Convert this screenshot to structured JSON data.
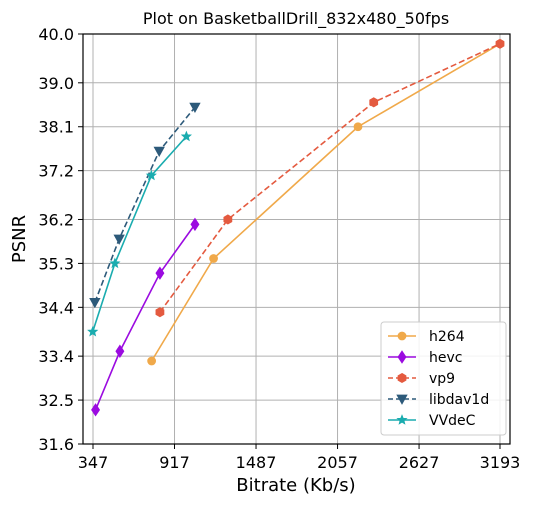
{
  "chart_data": {
    "type": "line",
    "title": "Plot on BasketballDrill_832x480_50fps",
    "xlabel": "Bitrate (Kb/s)",
    "ylabel": "PSNR",
    "xlim": [
      347,
      3193
    ],
    "ylim": [
      31.6,
      40.0
    ],
    "xticks": [
      347,
      917,
      1487,
      2057,
      2627,
      3193
    ],
    "xtick_labels": [
      "347",
      "917",
      "1487",
      "2057",
      "2627",
      "3193"
    ],
    "yticks": [
      31.6,
      32.5,
      33.4,
      34.4,
      35.3,
      36.2,
      37.2,
      38.1,
      39.0,
      40.0
    ],
    "ytick_labels": [
      "31.6",
      "32.5",
      "33.4",
      "34.4",
      "35.3",
      "36.2",
      "37.2",
      "38.1",
      "39.0",
      "40.0"
    ],
    "grid": true,
    "legend_position": "bottom-right",
    "series": [
      {
        "name": "h264",
        "color": "#f0a94a",
        "marker": "circle",
        "dash": "solid",
        "x": [
          757,
          1190,
          2200,
          3193
        ],
        "y": [
          33.3,
          35.4,
          38.1,
          39.8
        ]
      },
      {
        "name": "hevc",
        "color": "#9b0be0",
        "marker": "diamond",
        "dash": "solid",
        "x": [
          365,
          535,
          815,
          1060
        ],
        "y": [
          32.3,
          33.5,
          35.1,
          36.1
        ]
      },
      {
        "name": "vp9",
        "color": "#e45a3f",
        "marker": "hexagon",
        "dash": "dashed",
        "x": [
          815,
          1290,
          2310,
          3193
        ],
        "y": [
          34.3,
          36.2,
          38.6,
          39.8
        ]
      },
      {
        "name": "libdav1d",
        "color": "#2d5a7a",
        "marker": "triangle-down",
        "dash": "dashed",
        "x": [
          360,
          530,
          810,
          1060
        ],
        "y": [
          34.5,
          35.8,
          37.6,
          38.5
        ]
      },
      {
        "name": "VVdeC",
        "color": "#1aacaf",
        "marker": "star",
        "dash": "solid",
        "x": [
          345,
          500,
          755,
          1000
        ],
        "y": [
          33.9,
          35.3,
          37.1,
          37.9
        ]
      }
    ]
  }
}
